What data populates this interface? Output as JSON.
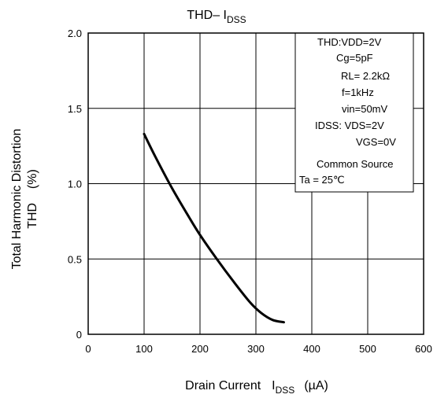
{
  "chart_data": {
    "type": "line",
    "title_main": "THD– I",
    "title_sub": "DSS",
    "xlabel_main": "Drain Current",
    "xlabel_sym": "I",
    "xlabel_sub": "DSS",
    "xlabel_unit": "(µA)",
    "ylabel_line1": "Total Harmonic Distortion",
    "ylabel_line2": "THD    (%)",
    "xlim": [
      0,
      600
    ],
    "ylim": [
      0,
      2.0
    ],
    "x_ticks": [
      "0",
      "100",
      "200",
      "300",
      "400",
      "500",
      "600"
    ],
    "y_ticks": [
      "0",
      "0.5",
      "1.0",
      "1.5",
      "2.0"
    ],
    "grid": true,
    "series": [
      {
        "x": [
          100,
          120,
          150,
          180,
          200,
          230,
          260,
          290,
          310,
          330,
          350
        ],
        "y": [
          1.33,
          1.18,
          0.97,
          0.78,
          0.66,
          0.5,
          0.35,
          0.21,
          0.14,
          0.095,
          0.08
        ],
        "color": "#000000"
      }
    ],
    "conditions_box": {
      "placement": "top-right",
      "lines": [
        "THD:VDD=2V",
        "Cg=5pF",
        "RL= 2.2kΩ",
        "f=1kHz",
        "vin=50mV",
        "IDSS: VDS=2V",
        "VGS=0V",
        "Common Source",
        "Ta = 25℃"
      ]
    }
  }
}
